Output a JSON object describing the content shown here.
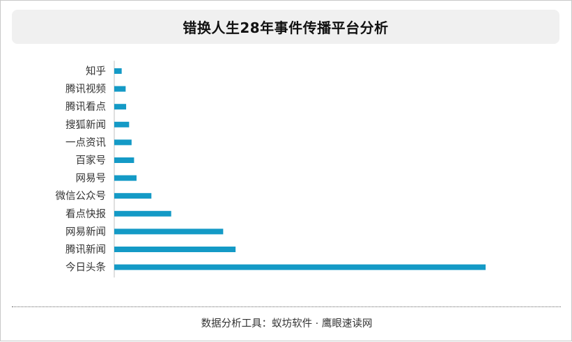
{
  "title": "错换人生28年事件传播平台分析",
  "footer": "数据分析工具：蚁坊软件 · 鹰眼速读网",
  "colors": {
    "bar": "#149ac6",
    "axis": "#bfbfbf",
    "title_bg": "#f0f0f0"
  },
  "chart_data": {
    "type": "bar",
    "orientation": "horizontal",
    "categories": [
      "知乎",
      "腾讯视频",
      "腾讯看点",
      "搜狐新闻",
      "一点资讯",
      "百家号",
      "网易号",
      "微信公众号",
      "看点快报",
      "网易新闻",
      "腾讯新闻",
      "今日头条"
    ],
    "values": [
      1.5,
      2.3,
      2.4,
      3.0,
      3.5,
      4.0,
      4.5,
      7.5,
      11.5,
      22.0,
      24.5,
      75.0
    ],
    "xlim": [
      0,
      75
    ],
    "grid": false,
    "legend": "none"
  }
}
